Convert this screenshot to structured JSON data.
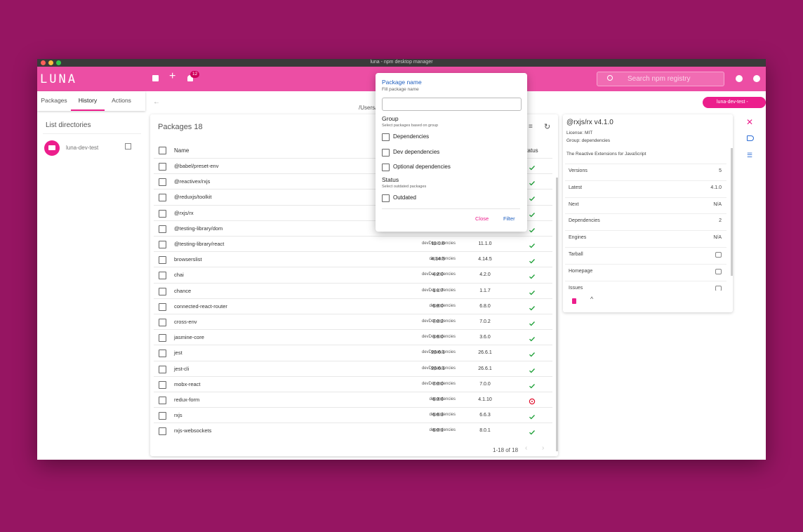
{
  "window": {
    "title": "luna - npm desktop manager"
  },
  "header": {
    "logo": "LUNA",
    "notification_count": "12",
    "search_placeholder": "Search npm registry",
    "project_badge": "luna-dev-test - 1.0.0"
  },
  "tabs": {
    "items": [
      "Packages",
      "History",
      "Actions"
    ],
    "active": 1
  },
  "sidebar": {
    "title": "List directories",
    "items": [
      "luna-dev-test"
    ]
  },
  "path": "/Users/",
  "packages": {
    "title": "Packages 18",
    "columns": [
      "Name",
      "Status"
    ],
    "rows": [
      {
        "name": "@babel/preset-env",
        "group": null,
        "installed": null,
        "latest": null,
        "status": "ok"
      },
      {
        "name": "@reactivex/rxjs",
        "group": null,
        "installed": null,
        "latest": null,
        "status": "ok"
      },
      {
        "name": "@reduxjs/toolkit",
        "group": null,
        "installed": null,
        "latest": null,
        "status": "ok"
      },
      {
        "name": "@rxjs/rx",
        "group": null,
        "installed": null,
        "latest": null,
        "status": "ok"
      },
      {
        "name": "@testing-library/dom",
        "group": null,
        "installed": null,
        "latest": null,
        "status": "ok"
      },
      {
        "name": "@testing-library/react",
        "group": "devDependencies",
        "installed": "11.1.0",
        "latest": "11.1.0",
        "status": "ok"
      },
      {
        "name": "browserslist",
        "group": "dependencies",
        "installed": "4.14.5",
        "latest": "4.14.5",
        "status": "ok"
      },
      {
        "name": "chai",
        "group": "devDependencies",
        "installed": "4.2.0",
        "latest": "4.2.0",
        "status": "ok"
      },
      {
        "name": "chance",
        "group": "devDependencies",
        "installed": "1.1.7",
        "latest": "1.1.7",
        "status": "ok"
      },
      {
        "name": "connected-react-router",
        "group": "dependencies",
        "installed": "6.8.0",
        "latest": "6.8.0",
        "status": "ok"
      },
      {
        "name": "cross-env",
        "group": "devDependencies",
        "installed": "7.0.2",
        "latest": "7.0.2",
        "status": "ok"
      },
      {
        "name": "jasmine-core",
        "group": "devDependencies",
        "installed": "3.6.0",
        "latest": "3.6.0",
        "status": "ok"
      },
      {
        "name": "jest",
        "group": "devDependencies",
        "installed": "26.6.1",
        "latest": "26.6.1",
        "status": "ok"
      },
      {
        "name": "jest-cli",
        "group": "devDependencies",
        "installed": "26.6.1",
        "latest": "26.6.1",
        "status": "ok"
      },
      {
        "name": "mobx-react",
        "group": "devDependencies",
        "installed": "7.0.0",
        "latest": "7.0.0",
        "status": "ok"
      },
      {
        "name": "redux-form",
        "group": "dependencies",
        "installed": "8.3.6",
        "latest": "4.1.10",
        "status": "outdated"
      },
      {
        "name": "rxjs",
        "group": "dependencies",
        "installed": "6.6.3",
        "latest": "6.6.3",
        "status": "ok"
      },
      {
        "name": "rxjs-websockets",
        "group": "dependencies",
        "installed": "8.0.1",
        "latest": "8.0.1",
        "status": "ok"
      }
    ],
    "pagination": "1-18 of 18"
  },
  "filter": {
    "name_title": "Package name",
    "name_hint": "Fill package name",
    "group_title": "Group",
    "group_hint": "Select packages based on group",
    "group_options": [
      "Dependencies",
      "Dev dependencies",
      "Optional dependencies"
    ],
    "status_title": "Status",
    "status_hint": "Select outdated packages",
    "status_options": [
      "Outdated"
    ],
    "close": "Close",
    "apply": "Filter"
  },
  "details": {
    "title": "@rxjs/rx v4.1.0",
    "license": "License: MIT",
    "group": "Group: dependencies",
    "description": "The Reactive Extensions for JavaScript",
    "stats": [
      {
        "label": "Versions",
        "value": "5"
      },
      {
        "label": "Latest",
        "value": "4.1.0"
      },
      {
        "label": "Next",
        "value": "N/A"
      },
      {
        "label": "Dependencies",
        "value": "2"
      },
      {
        "label": "Engines",
        "value": "N/A"
      },
      {
        "label": "Tarball",
        "value": null
      },
      {
        "label": "Homepage",
        "value": null
      },
      {
        "label": "Issues",
        "value": null
      }
    ]
  }
}
